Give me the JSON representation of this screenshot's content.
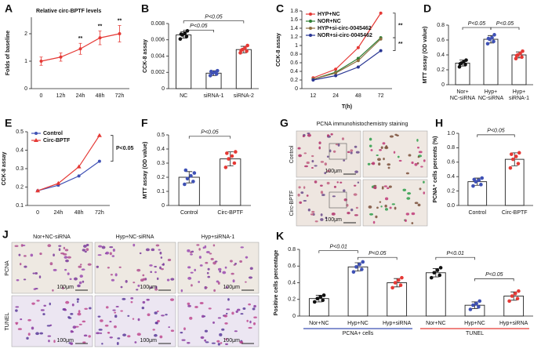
{
  "chart_data": [
    {
      "panel": "A",
      "type": "line",
      "title": "Relative circ-BPTF levels",
      "ylabel": "Folds of baseline",
      "categories": [
        "0",
        "12h",
        "24h",
        "48h",
        "72h"
      ],
      "values": [
        1.0,
        1.15,
        1.45,
        1.85,
        2.0
      ],
      "errors": [
        0.15,
        0.15,
        0.2,
        0.25,
        0.3
      ],
      "color": "#e53935",
      "ylim": [
        0,
        2.6
      ],
      "yticks": [
        0,
        1,
        2
      ],
      "annotations": [
        "**",
        "**",
        "**"
      ]
    },
    {
      "panel": "B",
      "type": "bar",
      "ylabel": "CCK-8 assay",
      "categories": [
        "NC",
        "siRNA-1",
        "siRNA-2"
      ],
      "values": [
        0.0066,
        0.0019,
        0.0048
      ],
      "errors": [
        0.0004,
        0.0003,
        0.0004
      ],
      "points": [
        [
          0.0061,
          0.0064,
          0.0066,
          0.0068,
          0.0071,
          0.0067
        ],
        [
          0.0016,
          0.0018,
          0.0019,
          0.002,
          0.0022,
          0.0021
        ],
        [
          0.0044,
          0.0046,
          0.0048,
          0.005,
          0.0053,
          0.0047
        ]
      ],
      "colors": [
        "#111111",
        "#3f51b5",
        "#e53935"
      ],
      "ylim": [
        0,
        0.008
      ],
      "yticks": [
        0,
        0.002,
        0.004,
        0.006,
        0.008
      ],
      "annotations": [
        "P<0.05",
        "P<0.05"
      ]
    },
    {
      "panel": "C",
      "type": "line",
      "ylabel": "CCK-8 assay",
      "xlabel": "T(h)",
      "categories": [
        "12",
        "24",
        "48",
        "72"
      ],
      "series": [
        {
          "name": "HYP+NC",
          "color": "#e53935",
          "values": [
            0.25,
            0.45,
            0.95,
            1.75
          ]
        },
        {
          "name": "NOR+NC",
          "color": "#2e7d32",
          "values": [
            0.22,
            0.38,
            0.7,
            1.18
          ]
        },
        {
          "name": "HYP+si-circ-0045462",
          "color": "#8d6e3f",
          "values": [
            0.22,
            0.36,
            0.65,
            1.15
          ]
        },
        {
          "name": "NOR+si-circ-0045462",
          "color": "#283593",
          "values": [
            0.2,
            0.3,
            0.5,
            0.88
          ]
        }
      ],
      "ylim": [
        0,
        1.8
      ],
      "yticks": [
        0,
        0.2,
        0.4,
        0.6,
        0.8,
        1,
        1.2,
        1.4,
        1.6,
        1.8
      ],
      "annotations": [
        "**",
        "**"
      ]
    },
    {
      "panel": "D",
      "type": "bar",
      "ylabel": "MTT assay (OD value)",
      "categories": [
        [
          "Nor+",
          "NC-siRNA"
        ],
        [
          "Hyp+",
          "NC-siRNA"
        ],
        [
          "Hyp+",
          "siRNA-1"
        ]
      ],
      "values": [
        0.29,
        0.61,
        0.4
      ],
      "errors": [
        0.04,
        0.05,
        0.04
      ],
      "points": [
        [
          0.24,
          0.27,
          0.29,
          0.31,
          0.33,
          0.28
        ],
        [
          0.55,
          0.58,
          0.61,
          0.63,
          0.67,
          0.62
        ],
        [
          0.35,
          0.37,
          0.4,
          0.42,
          0.45,
          0.39
        ]
      ],
      "colors": [
        "#111111",
        "#3f51b5",
        "#e53935"
      ],
      "ylim": [
        0,
        0.8
      ],
      "yticks": [
        0,
        0.2,
        0.4,
        0.6,
        0.8
      ],
      "annotations": [
        "P<0.05",
        "P<0.05"
      ]
    },
    {
      "panel": "E",
      "type": "line",
      "ylabel": "CCK-8 assay",
      "categories": [
        "0",
        "24h",
        "48h",
        "72h"
      ],
      "series": [
        {
          "name": "Control",
          "color": "#3f51b5",
          "values": [
            0.18,
            0.21,
            0.26,
            0.34
          ]
        },
        {
          "name": "Circ-BPTF",
          "color": "#e53935",
          "marker": "triangle",
          "values": [
            0.18,
            0.22,
            0.31,
            0.48
          ]
        }
      ],
      "ylim": [
        0.1,
        0.5
      ],
      "yticks": [
        0.1,
        0.2,
        0.3,
        0.4,
        0.5
      ],
      "annotations": [
        "P<0.05"
      ]
    },
    {
      "panel": "F",
      "type": "bar",
      "ylabel": "MTT assay (OD value)",
      "categories": [
        "Control",
        "Circ-BPTF"
      ],
      "values": [
        0.2,
        0.33
      ],
      "errors": [
        0.04,
        0.05
      ],
      "points": [
        [
          0.15,
          0.17,
          0.19,
          0.21,
          0.23,
          0.25
        ],
        [
          0.27,
          0.3,
          0.33,
          0.35,
          0.38,
          0.37
        ]
      ],
      "colors": [
        "#3f51b5",
        "#e53935"
      ],
      "ylim": [
        0,
        0.5
      ],
      "yticks": [
        0,
        0.1,
        0.2,
        0.3,
        0.4,
        0.5
      ],
      "annotations": [
        "P<0.05"
      ]
    },
    {
      "panel": "H",
      "type": "bar",
      "ylabel": "PCNA⁺ cells percents (%)",
      "categories": [
        "Control",
        "Circ-BPTF"
      ],
      "values": [
        0.33,
        0.64
      ],
      "errors": [
        0.05,
        0.09
      ],
      "points": [
        [
          0.27,
          0.29,
          0.33,
          0.35,
          0.38,
          0.36
        ],
        [
          0.52,
          0.58,
          0.64,
          0.68,
          0.73,
          0.71
        ]
      ],
      "colors": [
        "#3f51b5",
        "#e53935"
      ],
      "ylim": [
        0,
        1
      ],
      "yticks": [
        {
          "value": 0,
          "label": "0.0"
        },
        0.2,
        0.4,
        0.6,
        0.8,
        {
          "value": 1,
          "label": "1.0"
        }
      ],
      "annotations": [
        "P<0.05"
      ]
    },
    {
      "panel": "K",
      "type": "bar",
      "ylabel": "Positive cells percentage",
      "categories": [
        "Nor+NC",
        "Hyp+NC",
        "Hyp+siRNA",
        "Nor+NC",
        "Hyp+NC",
        "Hyp+siRNA"
      ],
      "values": [
        0.21,
        0.59,
        0.4,
        0.52,
        0.13,
        0.24
      ],
      "errors": [
        0.04,
        0.05,
        0.05,
        0.05,
        0.04,
        0.05
      ],
      "points": [
        [
          0.17,
          0.19,
          0.21,
          0.23,
          0.25
        ],
        [
          0.53,
          0.56,
          0.59,
          0.62,
          0.65
        ],
        [
          0.34,
          0.37,
          0.4,
          0.43,
          0.46
        ],
        [
          0.46,
          0.49,
          0.52,
          0.55,
          0.58
        ],
        [
          0.08,
          0.11,
          0.13,
          0.15,
          0.18
        ],
        [
          0.18,
          0.21,
          0.24,
          0.27,
          0.3
        ]
      ],
      "colors": [
        "#111111",
        "#3f51b5",
        "#e53935",
        "#111111",
        "#3f51b5",
        "#e53935"
      ],
      "groups": [
        {
          "name": "PCNA+ cells",
          "color": "#3f51b5"
        },
        {
          "name": "TUNEL",
          "color": "#e53935"
        }
      ],
      "ylim": [
        0,
        0.8
      ],
      "yticks": [
        0,
        0.2,
        0.4,
        0.6,
        0.8
      ],
      "annotations": [
        "P<0.01",
        "P<0.05",
        "P<0.01",
        "P<0.05"
      ]
    }
  ],
  "images": [
    {
      "panel": "G",
      "title": "PCNA immunohistochemistry staining",
      "row_labels": [
        "Control",
        "Circ-BPTF"
      ],
      "scale_bars": [
        "100μm",
        "100μm"
      ]
    },
    {
      "panel": "J",
      "col_labels": [
        "Nor+NC-siRNA",
        "Hyp+NC-siRNA",
        "Hyp+siRNA-1"
      ],
      "row_labels": [
        "PCNA",
        "TUNEL"
      ],
      "scale_bars": [
        "100μm",
        "100μm",
        "100μm",
        "100μm",
        "100μm",
        "100μm"
      ]
    }
  ]
}
